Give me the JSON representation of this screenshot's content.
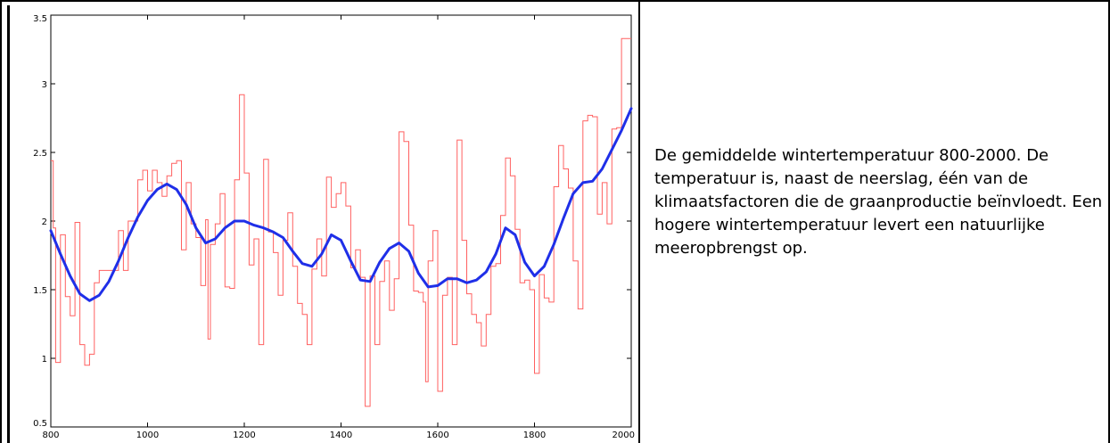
{
  "caption": {
    "text": "De gemiddelde wintertemperatuur 800-2000. De temperatuur is, naast de neerslag, één van de klimaatsfactoren die de graanproductie beïnvloedt. Een hogere wintertemperatuur levert een natuurlijke meeropbrengst op."
  },
  "chart_data": {
    "type": "line",
    "title": "",
    "xlabel": "",
    "ylabel": "",
    "xlim": [
      800,
      2000
    ],
    "ylim": [
      0.5,
      3.5
    ],
    "x_ticks": [
      "800",
      "1000",
      "1200",
      "1400",
      "1600",
      "1800",
      "2000"
    ],
    "y_ticks": [
      "0.5",
      "1",
      "1.5",
      "2",
      "2.5",
      "3",
      "3.5"
    ],
    "x_tick_values": [
      800,
      1000,
      1200,
      1400,
      1600,
      1800,
      2000
    ],
    "y_tick_values": [
      0.5,
      1,
      1.5,
      2,
      2.5,
      3,
      3.5
    ],
    "grid": false,
    "legend": "none",
    "series": [
      {
        "style": "step",
        "color": "#ff6060",
        "points": [
          [
            800,
            2.44
          ],
          [
            805,
            1.95
          ],
          [
            810,
            0.97
          ],
          [
            820,
            1.9
          ],
          [
            830,
            1.45
          ],
          [
            840,
            1.31
          ],
          [
            850,
            1.99
          ],
          [
            860,
            1.1
          ],
          [
            870,
            0.95
          ],
          [
            880,
            1.03
          ],
          [
            890,
            1.55
          ],
          [
            900,
            1.64
          ],
          [
            920,
            1.64
          ],
          [
            940,
            1.93
          ],
          [
            950,
            1.64
          ],
          [
            960,
            2.0
          ],
          [
            980,
            2.3
          ],
          [
            990,
            2.37
          ],
          [
            1000,
            2.22
          ],
          [
            1010,
            2.37
          ],
          [
            1020,
            2.28
          ],
          [
            1030,
            2.18
          ],
          [
            1040,
            2.33
          ],
          [
            1050,
            2.42
          ],
          [
            1060,
            2.44
          ],
          [
            1070,
            1.79
          ],
          [
            1080,
            2.28
          ],
          [
            1090,
            1.98
          ],
          [
            1100,
            1.88
          ],
          [
            1110,
            1.53
          ],
          [
            1120,
            2.01
          ],
          [
            1125,
            1.14
          ],
          [
            1130,
            1.83
          ],
          [
            1140,
            1.98
          ],
          [
            1150,
            2.2
          ],
          [
            1160,
            1.52
          ],
          [
            1170,
            1.51
          ],
          [
            1180,
            2.3
          ],
          [
            1190,
            2.92
          ],
          [
            1200,
            2.35
          ],
          [
            1210,
            1.68
          ],
          [
            1220,
            1.87
          ],
          [
            1230,
            1.1
          ],
          [
            1240,
            2.45
          ],
          [
            1250,
            1.92
          ],
          [
            1260,
            1.77
          ],
          [
            1270,
            1.46
          ],
          [
            1280,
            1.86
          ],
          [
            1290,
            2.06
          ],
          [
            1300,
            1.67
          ],
          [
            1310,
            1.4
          ],
          [
            1320,
            1.32
          ],
          [
            1330,
            1.1
          ],
          [
            1340,
            1.65
          ],
          [
            1350,
            1.87
          ],
          [
            1360,
            1.6
          ],
          [
            1370,
            2.32
          ],
          [
            1380,
            2.1
          ],
          [
            1390,
            2.2
          ],
          [
            1400,
            2.28
          ],
          [
            1410,
            2.11
          ],
          [
            1420,
            1.66
          ],
          [
            1430,
            1.79
          ],
          [
            1440,
            1.59
          ],
          [
            1450,
            0.65
          ],
          [
            1460,
            1.6
          ],
          [
            1470,
            1.1
          ],
          [
            1480,
            1.56
          ],
          [
            1490,
            1.71
          ],
          [
            1500,
            1.35
          ],
          [
            1510,
            1.58
          ],
          [
            1520,
            2.65
          ],
          [
            1530,
            2.58
          ],
          [
            1540,
            1.97
          ],
          [
            1550,
            1.49
          ],
          [
            1560,
            1.48
          ],
          [
            1570,
            1.41
          ],
          [
            1575,
            0.83
          ],
          [
            1580,
            1.71
          ],
          [
            1590,
            1.93
          ],
          [
            1600,
            0.76
          ],
          [
            1610,
            1.46
          ],
          [
            1620,
            1.59
          ],
          [
            1630,
            1.1
          ],
          [
            1640,
            2.59
          ],
          [
            1650,
            1.86
          ],
          [
            1660,
            1.47
          ],
          [
            1670,
            1.32
          ],
          [
            1680,
            1.26
          ],
          [
            1690,
            1.09
          ],
          [
            1700,
            1.32
          ],
          [
            1710,
            1.67
          ],
          [
            1720,
            1.69
          ],
          [
            1730,
            2.04
          ],
          [
            1740,
            2.46
          ],
          [
            1750,
            2.33
          ],
          [
            1760,
            1.94
          ],
          [
            1770,
            1.55
          ],
          [
            1780,
            1.57
          ],
          [
            1790,
            1.5
          ],
          [
            1800,
            0.89
          ],
          [
            1810,
            1.61
          ],
          [
            1820,
            1.44
          ],
          [
            1830,
            1.41
          ],
          [
            1840,
            2.25
          ],
          [
            1850,
            2.55
          ],
          [
            1860,
            2.38
          ],
          [
            1870,
            2.24
          ],
          [
            1880,
            1.71
          ],
          [
            1890,
            1.36
          ],
          [
            1900,
            2.73
          ],
          [
            1910,
            2.77
          ],
          [
            1920,
            2.76
          ],
          [
            1930,
            2.05
          ],
          [
            1940,
            2.28
          ],
          [
            1950,
            1.98
          ],
          [
            1960,
            2.67
          ],
          [
            1970,
            2.68
          ],
          [
            1980,
            3.33
          ],
          [
            1990,
            3.33
          ]
        ]
      },
      {
        "style": "line",
        "color": "#1f2fe8",
        "points": [
          [
            800,
            1.93
          ],
          [
            820,
            1.76
          ],
          [
            840,
            1.6
          ],
          [
            860,
            1.47
          ],
          [
            880,
            1.42
          ],
          [
            900,
            1.46
          ],
          [
            920,
            1.56
          ],
          [
            940,
            1.71
          ],
          [
            960,
            1.88
          ],
          [
            980,
            2.03
          ],
          [
            1000,
            2.15
          ],
          [
            1020,
            2.23
          ],
          [
            1040,
            2.27
          ],
          [
            1060,
            2.23
          ],
          [
            1080,
            2.12
          ],
          [
            1100,
            1.95
          ],
          [
            1120,
            1.84
          ],
          [
            1140,
            1.87
          ],
          [
            1160,
            1.95
          ],
          [
            1180,
            2.0
          ],
          [
            1200,
            2.0
          ],
          [
            1220,
            1.97
          ],
          [
            1240,
            1.95
          ],
          [
            1260,
            1.92
          ],
          [
            1280,
            1.88
          ],
          [
            1300,
            1.78
          ],
          [
            1320,
            1.69
          ],
          [
            1340,
            1.67
          ],
          [
            1360,
            1.76
          ],
          [
            1380,
            1.9
          ],
          [
            1400,
            1.86
          ],
          [
            1420,
            1.71
          ],
          [
            1440,
            1.57
          ],
          [
            1460,
            1.56
          ],
          [
            1480,
            1.7
          ],
          [
            1500,
            1.8
          ],
          [
            1520,
            1.84
          ],
          [
            1540,
            1.78
          ],
          [
            1560,
            1.62
          ],
          [
            1580,
            1.52
          ],
          [
            1600,
            1.53
          ],
          [
            1620,
            1.58
          ],
          [
            1640,
            1.58
          ],
          [
            1660,
            1.55
          ],
          [
            1680,
            1.57
          ],
          [
            1700,
            1.63
          ],
          [
            1720,
            1.76
          ],
          [
            1740,
            1.95
          ],
          [
            1760,
            1.9
          ],
          [
            1780,
            1.7
          ],
          [
            1800,
            1.6
          ],
          [
            1820,
            1.67
          ],
          [
            1840,
            1.83
          ],
          [
            1860,
            2.02
          ],
          [
            1880,
            2.2
          ],
          [
            1900,
            2.28
          ],
          [
            1920,
            2.29
          ],
          [
            1940,
            2.38
          ],
          [
            1960,
            2.52
          ],
          [
            1980,
            2.66
          ],
          [
            2000,
            2.82
          ]
        ]
      }
    ]
  }
}
